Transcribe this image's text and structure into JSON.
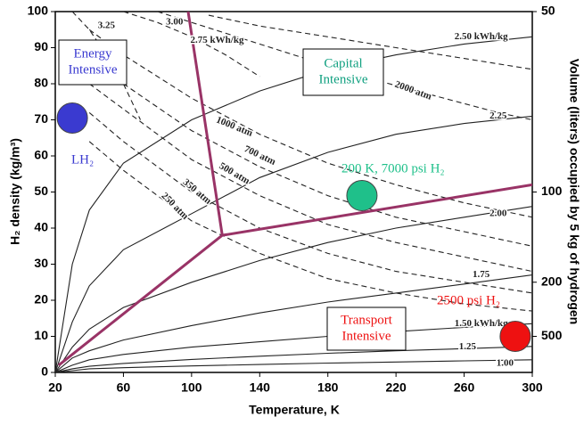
{
  "chart_data": {
    "type": "line",
    "xlabel": "Temperature, K",
    "ylabel": "H₂ density (kg/m³)",
    "y2label": "Volume (liters) occupied by 5 kg of hydrogen",
    "xlim": [
      20,
      300
    ],
    "xticks": [
      20,
      60,
      100,
      140,
      180,
      220,
      260,
      300
    ],
    "ylim": [
      0,
      100
    ],
    "yticks": [
      0,
      10,
      20,
      30,
      40,
      50,
      60,
      70,
      80,
      90,
      100
    ],
    "y2lim": [
      null,
      50
    ],
    "y2scale": "reciprocal",
    "y2ticks": [
      50,
      100,
      200,
      500
    ],
    "series": [
      {
        "name": "1.00",
        "style": "solid",
        "color": "#222222",
        "x": [
          20,
          30,
          40,
          60,
          100,
          140,
          180,
          220,
          260,
          300
        ],
        "values": [
          0,
          0.5,
          1,
          1.3,
          1.8,
          2.2,
          2.6,
          2.9,
          3.2,
          3.5
        ]
      },
      {
        "name": "1.25",
        "style": "solid",
        "color": "#222222",
        "x": [
          20,
          30,
          40,
          60,
          100,
          140,
          180,
          220,
          260,
          300
        ],
        "values": [
          0,
          1,
          1.7,
          2.5,
          3.6,
          4.5,
          5.3,
          6,
          6.6,
          7.2
        ]
      },
      {
        "name": "1.50 kWh/kg",
        "style": "solid",
        "color": "#222222",
        "x": [
          20,
          30,
          40,
          60,
          100,
          140,
          180,
          220,
          260,
          300
        ],
        "values": [
          0,
          2,
          3.5,
          5,
          7,
          8.5,
          10,
          11.3,
          12.5,
          13.5
        ]
      },
      {
        "name": "1.75",
        "style": "solid",
        "color": "#222222",
        "x": [
          20,
          30,
          40,
          60,
          100,
          140,
          180,
          220,
          260,
          300
        ],
        "values": [
          0,
          4,
          6,
          9,
          13,
          16.5,
          19.5,
          22,
          24.5,
          27
        ]
      },
      {
        "name": "2.00",
        "style": "solid",
        "color": "#222222",
        "x": [
          20,
          30,
          40,
          60,
          100,
          140,
          180,
          220,
          260,
          300
        ],
        "values": [
          0,
          7,
          12,
          18,
          25,
          31,
          36,
          40,
          43,
          46
        ]
      },
      {
        "name": "2.25",
        "style": "solid",
        "color": "#222222",
        "x": [
          20,
          30,
          40,
          60,
          100,
          140,
          180,
          220,
          260,
          300
        ],
        "values": [
          0,
          14,
          24,
          34,
          44,
          54,
          61,
          66,
          69,
          71
        ]
      },
      {
        "name": "2.50 kWh/kg",
        "style": "solid",
        "color": "#222222",
        "x": [
          20,
          30,
          40,
          60,
          100,
          140,
          180,
          220,
          260,
          300
        ],
        "values": [
          0,
          30,
          45,
          58,
          70,
          78,
          84,
          88,
          91,
          93
        ]
      },
      {
        "name": "2.75 kWh/kg",
        "style": "dashed",
        "color": "#222222",
        "x": [
          110,
          140,
          180,
          220,
          260,
          300
        ],
        "values": [
          99,
          96,
          93,
          90,
          87,
          84
        ]
      },
      {
        "name": "3.00",
        "style": "dashed",
        "color": "#222222",
        "x": [
          60,
          80,
          100,
          120,
          140
        ],
        "values": [
          100,
          97,
          93,
          88,
          82
        ]
      },
      {
        "name": "3.25",
        "style": "dashed",
        "color": "#222222",
        "x": [
          30,
          40,
          50,
          60,
          70
        ],
        "values": [
          100,
          95,
          88,
          80,
          70
        ]
      },
      {
        "name": "2000 atm",
        "style": "dashed",
        "color": "#222222",
        "x": [
          80,
          120,
          160,
          200,
          240,
          280,
          300
        ],
        "values": [
          100,
          94,
          88,
          82,
          77,
          72,
          70
        ]
      },
      {
        "name": "1000 atm",
        "style": "dashed",
        "color": "#222222",
        "x": [
          40,
          60,
          100,
          140,
          180,
          220,
          260,
          300
        ],
        "values": [
          95,
          88,
          76,
          66,
          58,
          52,
          47,
          43
        ]
      },
      {
        "name": "700 atm",
        "style": "dashed",
        "color": "#222222",
        "x": [
          40,
          60,
          100,
          140,
          180,
          220,
          260,
          300
        ],
        "values": [
          88,
          80,
          67,
          57,
          49,
          43,
          39,
          35
        ]
      },
      {
        "name": "500 atm",
        "style": "dashed",
        "color": "#222222",
        "x": [
          40,
          60,
          100,
          140,
          180,
          220,
          260,
          300
        ],
        "values": [
          80,
          73,
          59,
          49,
          41,
          36,
          32,
          28
        ]
      },
      {
        "name": "350 atm",
        "style": "dashed",
        "color": "#222222",
        "x": [
          40,
          60,
          100,
          140,
          180,
          220,
          260,
          300
        ],
        "values": [
          72,
          64,
          50,
          40,
          33,
          28,
          25,
          22
        ]
      },
      {
        "name": "250 atm",
        "style": "dashed",
        "color": "#222222",
        "x": [
          40,
          60,
          100,
          140,
          180,
          220,
          260,
          300
        ],
        "values": [
          64,
          56,
          42,
          33,
          26,
          22,
          19,
          17
        ]
      }
    ],
    "boundary_color": "#993366",
    "boundaries": [
      {
        "x": [
          22,
          118,
          300
        ],
        "values": [
          2,
          38,
          52
        ]
      },
      {
        "x": [
          118,
          98
        ],
        "values": [
          38,
          100
        ]
      }
    ],
    "points": [
      {
        "name": "LH₂",
        "x": 30,
        "y": 70.5,
        "color": "#3a3ad0"
      },
      {
        "name": "200 K, 7000 psi H₂",
        "x": 200,
        "y": 49,
        "color": "#1fc08a"
      },
      {
        "name": "2500 psi H₂",
        "x": 290,
        "y": 10,
        "color": "#ee1111"
      }
    ],
    "regions": [
      {
        "lines": [
          "Energy",
          "Intensive"
        ],
        "color": "#3a3ad0"
      },
      {
        "lines": [
          "Capital",
          "Intensive"
        ],
        "color": "#10a080"
      },
      {
        "lines": [
          "Transport",
          "Intensive"
        ],
        "color": "#ee1111"
      }
    ]
  }
}
